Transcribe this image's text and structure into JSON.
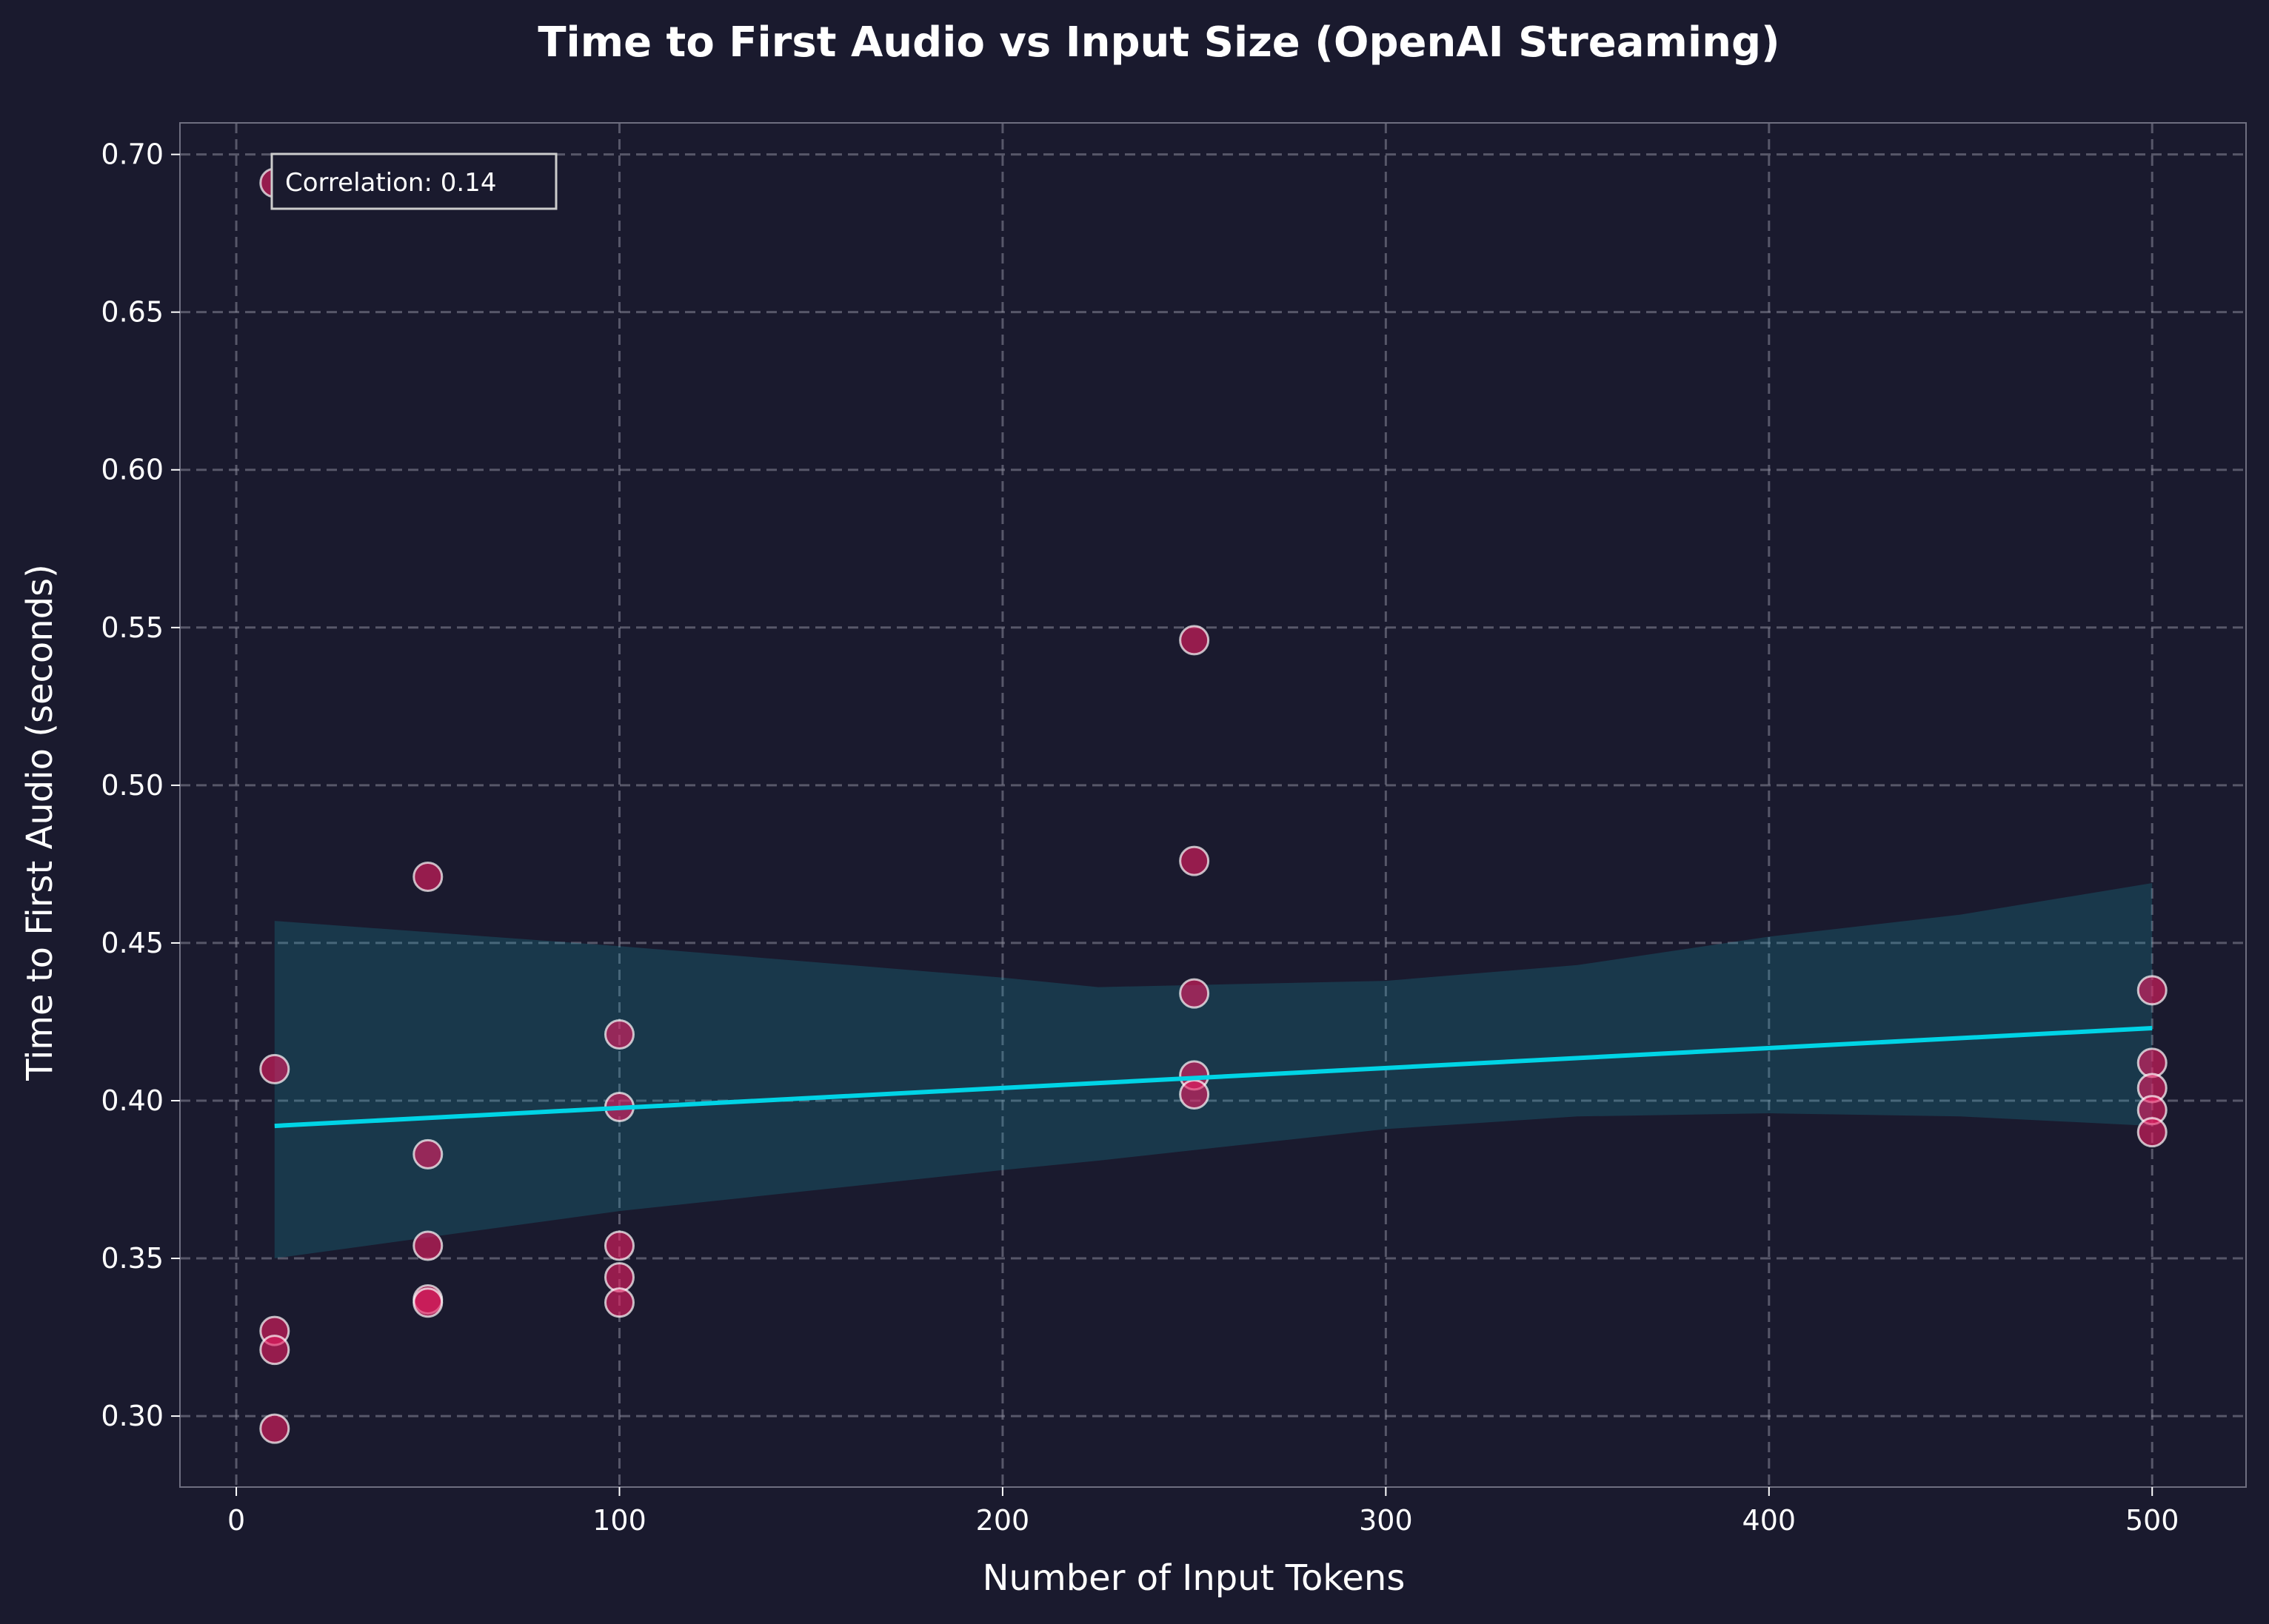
{
  "chart_data": {
    "type": "scatter",
    "title": "Time to First Audio vs Input Size (OpenAI Streaming)",
    "xlabel": "Number of Input Tokens",
    "ylabel": "Time to First Audio (seconds)",
    "xlim": [
      -14.7,
      524.5
    ],
    "ylim": [
      0.2775,
      0.71
    ],
    "xticks": [
      0,
      100,
      200,
      300,
      400,
      500
    ],
    "xtick_labels": [
      "0",
      "100",
      "200",
      "300",
      "400",
      "500"
    ],
    "yticks": [
      0.3,
      0.35,
      0.4,
      0.45,
      0.5,
      0.55,
      0.6,
      0.65,
      0.7
    ],
    "ytick_labels": [
      "0.30",
      "0.35",
      "0.40",
      "0.45",
      "0.50",
      "0.55",
      "0.60",
      "0.65",
      "0.70"
    ],
    "grid": true,
    "annotation": "Correlation: 0.14",
    "points": [
      {
        "x": 10,
        "y": 0.691
      },
      {
        "x": 10,
        "y": 0.41
      },
      {
        "x": 10,
        "y": 0.327
      },
      {
        "x": 10,
        "y": 0.321
      },
      {
        "x": 10,
        "y": 0.296
      },
      {
        "x": 50,
        "y": 0.471
      },
      {
        "x": 50,
        "y": 0.383
      },
      {
        "x": 50,
        "y": 0.354
      },
      {
        "x": 50,
        "y": 0.337
      },
      {
        "x": 50,
        "y": 0.336
      },
      {
        "x": 100,
        "y": 0.421
      },
      {
        "x": 100,
        "y": 0.398
      },
      {
        "x": 100,
        "y": 0.354
      },
      {
        "x": 100,
        "y": 0.344
      },
      {
        "x": 100,
        "y": 0.336
      },
      {
        "x": 250,
        "y": 0.546
      },
      {
        "x": 250,
        "y": 0.476
      },
      {
        "x": 250,
        "y": 0.434
      },
      {
        "x": 250,
        "y": 0.408
      },
      {
        "x": 250,
        "y": 0.402
      },
      {
        "x": 500,
        "y": 0.435
      },
      {
        "x": 500,
        "y": 0.412
      },
      {
        "x": 500,
        "y": 0.404
      },
      {
        "x": 500,
        "y": 0.397
      },
      {
        "x": 500,
        "y": 0.39
      }
    ],
    "regression": {
      "x": [
        10,
        500
      ],
      "y": [
        0.392,
        0.423
      ]
    },
    "confidence_band": {
      "x": [
        10,
        100,
        200,
        225,
        300,
        350,
        400,
        450,
        500
      ],
      "upper": [
        0.457,
        0.449,
        0.439,
        0.436,
        0.438,
        0.443,
        0.452,
        0.459,
        0.469
      ],
      "lower": [
        0.35,
        0.365,
        0.378,
        0.381,
        0.391,
        0.395,
        0.396,
        0.395,
        0.392
      ]
    },
    "colors": {
      "background": "#1a1a2e",
      "point": "#e91e63",
      "line": "#00d4e6",
      "band": "#17a2b8",
      "grid": "#8a8a9a"
    }
  }
}
